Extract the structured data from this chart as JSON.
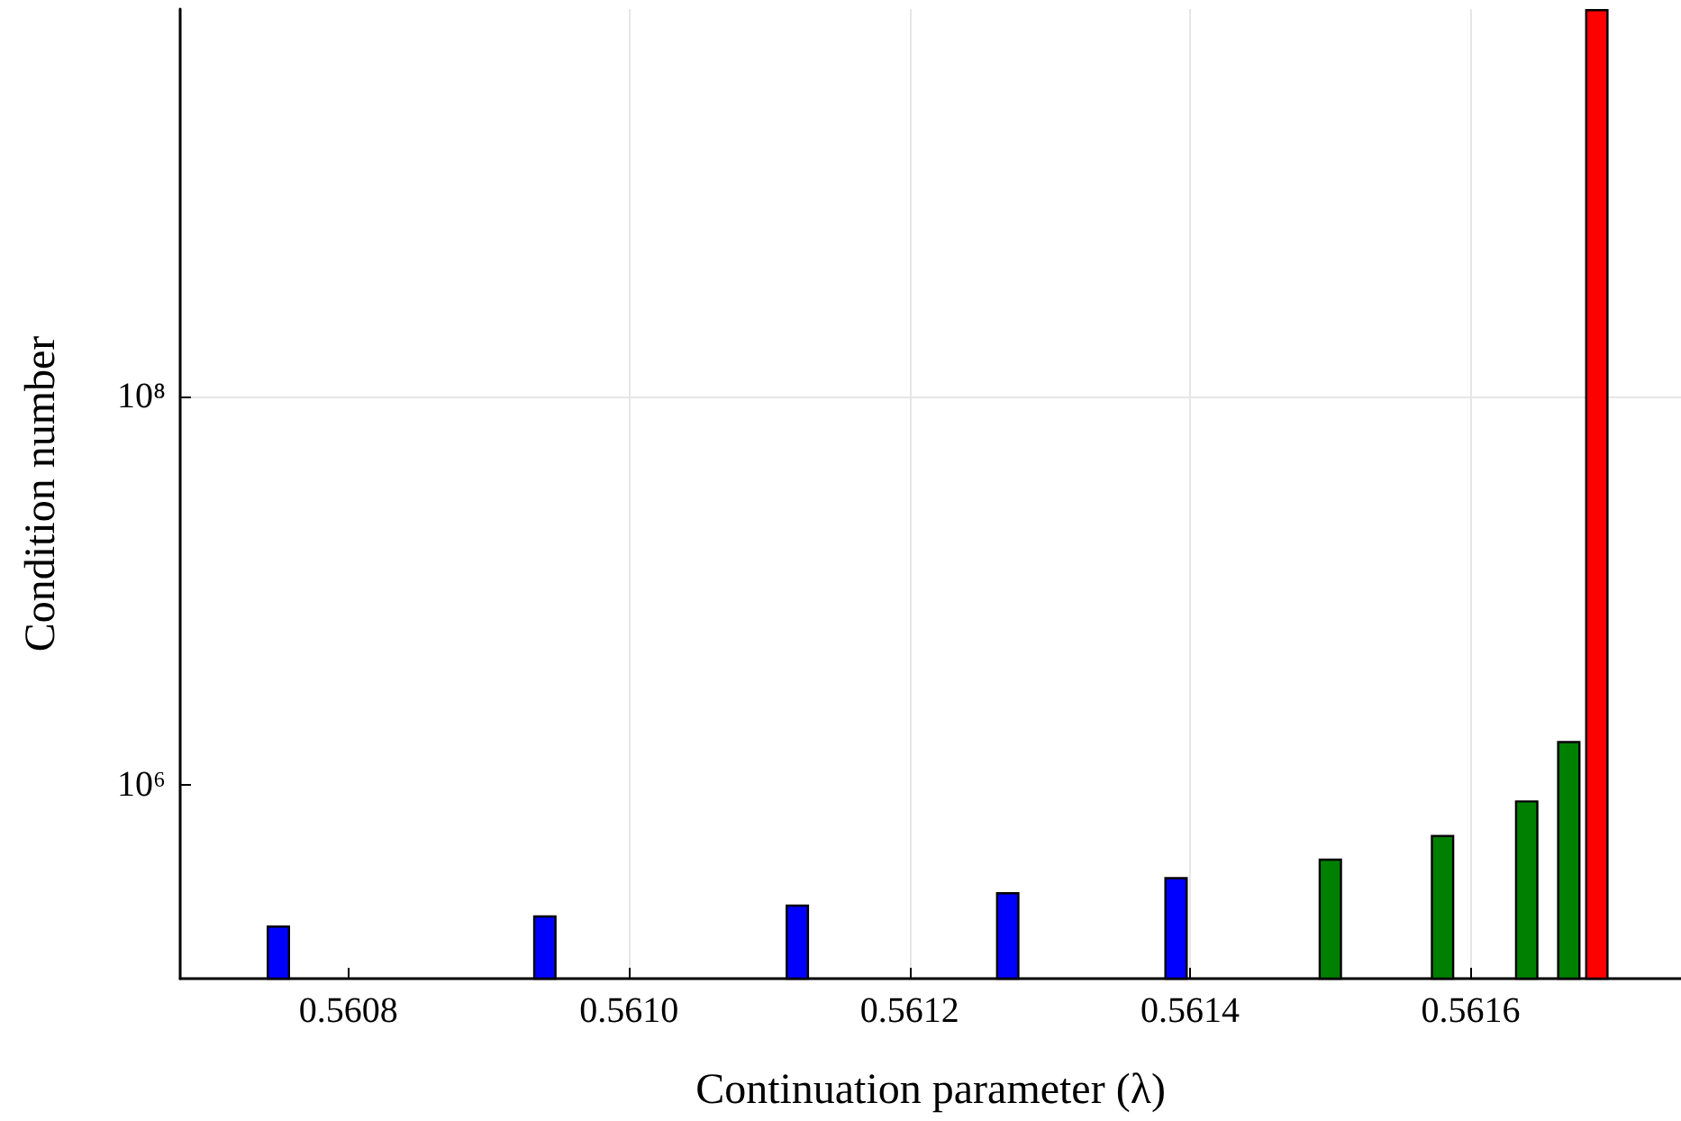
{
  "chart_data": {
    "type": "bar",
    "xlabel": "Continuation parameter (λ)",
    "ylabel": "Condition number",
    "log": "y",
    "grid": true,
    "xlim": [
      0.56068,
      0.56175
    ],
    "xticks": [
      0.5608,
      {
        "value": 0.561,
        "label": "0.5610"
      },
      0.5612,
      0.5614,
      0.5616
    ],
    "ylim": [
      100000,
      10000000000
    ],
    "yticks": [
      {
        "value": 1000000,
        "label": "10⁶"
      },
      {
        "value": 100000000,
        "label": "10⁸"
      }
    ],
    "series": [
      {
        "color": "#0000ff",
        "x": [
          0.56075,
          0.56094,
          0.56112,
          0.56127,
          0.56139
        ],
        "values": [
          188000,
          212000,
          241000,
          279000,
          334000
        ]
      },
      {
        "color": "#008000",
        "x": [
          0.5615,
          0.56158,
          0.56164,
          0.56167
        ],
        "values": [
          416000,
          551000,
          830000,
          1680000
        ]
      },
      {
        "color": "#ff0000",
        "x": [
          0.56169
        ],
        "values": [
          10000000000
        ]
      }
    ]
  }
}
